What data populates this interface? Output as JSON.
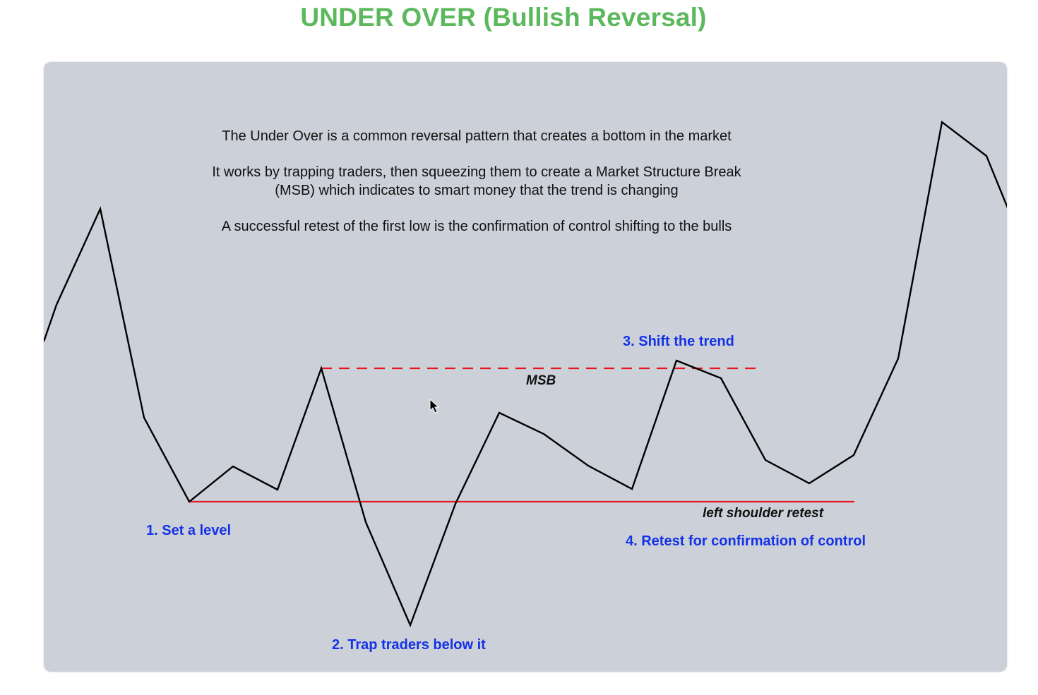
{
  "title": "UNDER OVER (Bullish Reversal)",
  "description": {
    "line1": "The Under Over is a common reversal pattern that creates a bottom in the market",
    "line2a": "It works by trapping traders, then squeezing them to create a Market Structure Break",
    "line2b": "(MSB) which indicates to smart money that the trend is changing",
    "line3": "A successful retest of the first low is the confirmation of control shifting to the bulls"
  },
  "steps": {
    "step1": "1. Set a level",
    "step2": "2. Trap traders below it",
    "step3": "3. Shift the trend",
    "step4": "4. Retest for confirmation of control"
  },
  "annotations": {
    "msb": "MSB",
    "left_shoulder": "left shoulder retest"
  },
  "colors": {
    "title": "#5cb85c",
    "panel_bg": "#ccd0d8",
    "price_line": "#000000",
    "level_line": "#e8141e",
    "msb_line": "#e8141e",
    "step_text": "#1432e6"
  },
  "icons": {
    "cursor": "mouse-pointer-icon"
  }
}
